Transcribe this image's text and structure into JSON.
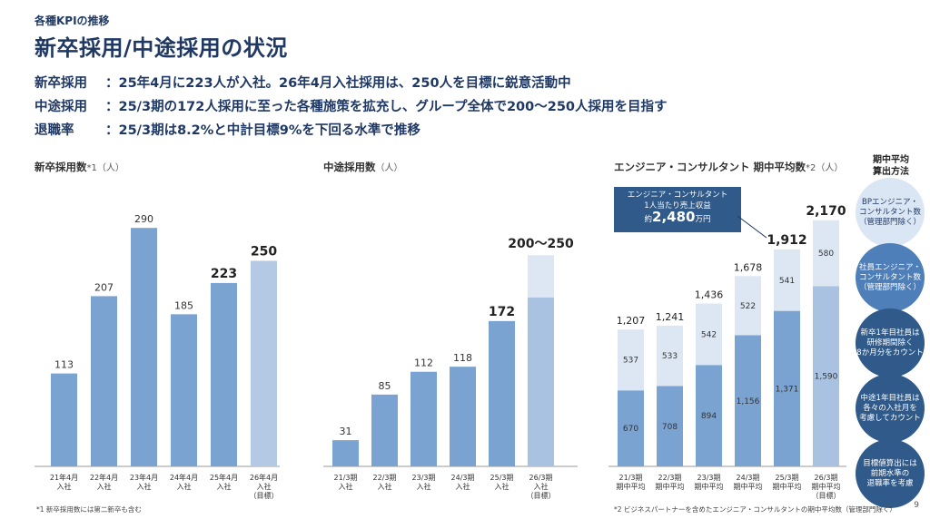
{
  "header": {
    "section": "各種KPIの推移",
    "title": "新卒採用/中途採用の状況"
  },
  "summary": [
    {
      "label": "新卒採用",
      "sep": "：",
      "text": "25年4月に223人が入社。26年4月入社採用は、250人を目標に鋭意活動中"
    },
    {
      "label": "中途採用",
      "sep": "：",
      "text": "25/3期の172人採用に至った各種施策を拡充し、グループ全体で200～250人採用を目指す"
    },
    {
      "label": "退職率",
      "sep": "：",
      "text": "25/3期は8.2%と中計目標9%を下回る水準で推移"
    }
  ],
  "chart_titles": {
    "new_grad": {
      "title": "新卒採用数",
      "sup": "*1",
      "unit": "（人）"
    },
    "mid_career": {
      "title": "中途採用数",
      "sup": "",
      "unit": "（人）"
    },
    "engineers": {
      "title": "エンジニア・コンサルタント 期中平均数",
      "sup": "*2",
      "unit": "（人）"
    }
  },
  "callout": {
    "line1": "エンジニア・コンサルタント",
    "line2": "1人当たり売上収益",
    "prefix": "約",
    "value": "2,480",
    "suffix": "万円"
  },
  "method": {
    "title": "期中平均\n算出方法",
    "circles": [
      {
        "text": "BPエンジニア・\nコンサルタント数\n（管理部門除く）",
        "fill": "#dbe6f4",
        "color": "#1f3864"
      },
      {
        "text": "社員エンジニア・\nコンサルタント数\n（管理部門除く）",
        "fill": "#4f7fb8",
        "color": "#ffffff"
      },
      {
        "text": "新卒1年目社員は\n研修期間除く\n8か月分をカウント",
        "fill": "#2f5a8a",
        "color": "#ffffff"
      },
      {
        "text": "中途1年目社員は\n各々の入社月を\n考慮してカウント",
        "fill": "#2f5a8a",
        "color": "#ffffff"
      },
      {
        "text": "目標値算出には\n前期水準の\n退職率を考慮",
        "fill": "#2f5a8a",
        "color": "#ffffff"
      }
    ]
  },
  "footnotes": {
    "note1": "*1 新卒採用数には第二新卒も含む",
    "note2": "*2 ビジネスパートナーを含めたエンジニア・コンサルタントの期中平均数（管理部門除く）"
  },
  "page_number": "9",
  "colors": {
    "primary": "#1f3864",
    "bar": "#7aa3d2",
    "bar_target": "#b4c9e4",
    "bar_light": "#dde7f4",
    "bar_target_base": "#a9c2e2"
  },
  "chart_data": [
    {
      "type": "bar",
      "title": "新卒採用数",
      "categories": [
        "21年4月\n入社",
        "22年4月\n入社",
        "23年4月\n入社",
        "24年4月\n入社",
        "25年4月\n入社",
        "26年4月\n入社\n（目標）"
      ],
      "values": [
        113,
        207,
        290,
        185,
        223,
        250
      ],
      "value_labels": [
        "113",
        "207",
        "290",
        "185",
        "223",
        "250"
      ],
      "ylim": [
        0,
        320
      ]
    },
    {
      "type": "bar",
      "title": "中途採用数",
      "categories": [
        "21/3期\n入社",
        "22/3期\n入社",
        "23/3期\n入社",
        "24/3期\n入社",
        "25/3期\n入社",
        "26/3期\n入社\n（目標）"
      ],
      "values": [
        31,
        85,
        112,
        118,
        172,
        250
      ],
      "target_range": [
        200,
        250
      ],
      "value_labels": [
        "31",
        "85",
        "112",
        "118",
        "172",
        "200～250"
      ],
      "ylim": [
        0,
        290
      ]
    },
    {
      "type": "bar",
      "stacked": true,
      "title": "エンジニア・コンサルタント 期中平均数",
      "categories": [
        "21/3期\n期中平均",
        "22/3期\n期中平均",
        "23/3期\n期中平均",
        "24/3期\n期中平均",
        "25/3期\n期中平均",
        "26/3期\n期中平均\n（目標）"
      ],
      "series": [
        {
          "values": [
            670,
            708,
            894,
            1156,
            1371,
            1590
          ]
        },
        {
          "values": [
            537,
            533,
            542,
            522,
            541,
            580
          ]
        }
      ],
      "totals": [
        1207,
        1241,
        1436,
        1678,
        1912,
        2170
      ],
      "total_labels": [
        "1,207",
        "1,241",
        "1,436",
        "1,678",
        "1,912",
        "2,170"
      ],
      "segment_labels": [
        [
          "670",
          "708",
          "894",
          "1,156",
          "1,371",
          "1,590"
        ],
        [
          "537",
          "533",
          "542",
          "522",
          "541",
          "580"
        ]
      ],
      "ylim": [
        0,
        2400
      ]
    }
  ]
}
